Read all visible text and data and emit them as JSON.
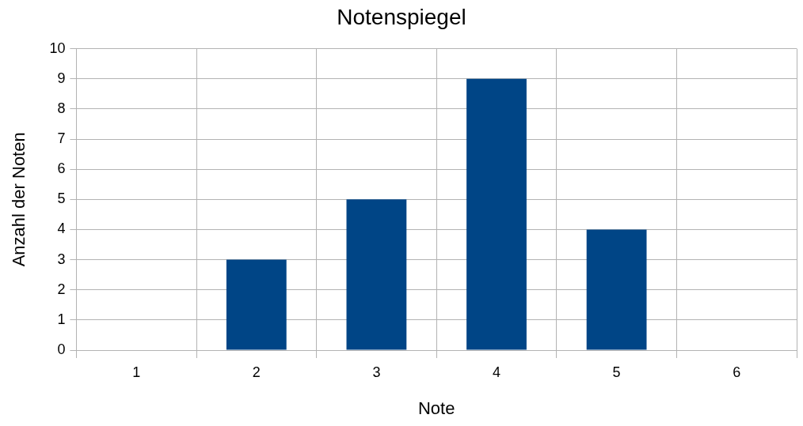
{
  "chart_data": {
    "type": "bar",
    "title": "Notenspiegel",
    "xlabel": "Note",
    "ylabel": "Anzahl der Noten",
    "categories": [
      "1",
      "2",
      "3",
      "4",
      "5",
      "6"
    ],
    "values": [
      0,
      3,
      5,
      9,
      4,
      0
    ],
    "color": "#004586",
    "ylim": [
      0,
      10
    ],
    "yticks": [
      0,
      1,
      2,
      3,
      4,
      5,
      6,
      7,
      8,
      9,
      10
    ],
    "grid": true
  }
}
